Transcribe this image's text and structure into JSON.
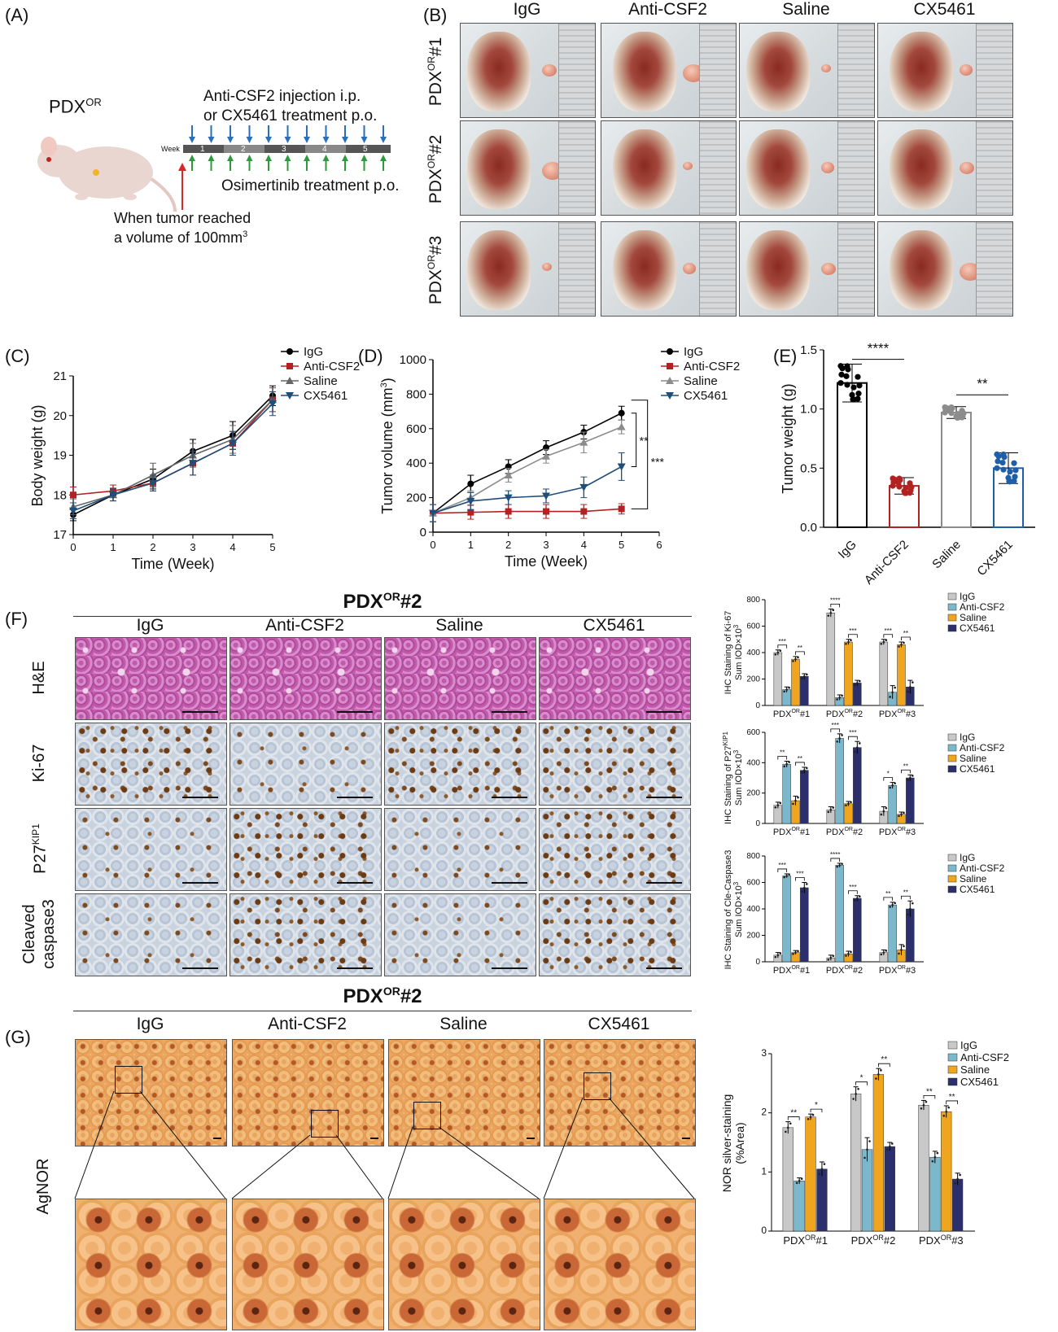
{
  "panels": {
    "A": {
      "label": "(A)",
      "model": "PDX",
      "model_sup": "OR",
      "treat_line1": "Anti-CSF2 injection i.p.",
      "treat_line2": "or CX5461 treatment p.o.",
      "week_word": "Week",
      "weeks": [
        "1",
        "2",
        "3",
        "4",
        "5"
      ],
      "osimertinib": "Osimertinib treatment p.o.",
      "start_line1": "When tumor reached",
      "start_line2": "a volume of 100mm",
      "start_sup": "3",
      "colors": {
        "blue_arrow": "#2a6fbe",
        "green_arrow": "#2e9a3e",
        "red_arrow": "#d62828"
      }
    },
    "B": {
      "label": "(B)",
      "columns": [
        "IgG",
        "Anti-CSF2",
        "Saline",
        "CX5461"
      ],
      "rows": [
        {
          "pre": "PDX",
          "sup": "OR",
          "post": "#1"
        },
        {
          "pre": "PDX",
          "sup": "OR",
          "post": "#2"
        },
        {
          "pre": "PDX",
          "sup": "OR",
          "post": "#3"
        }
      ]
    },
    "C": {
      "label": "(C)"
    },
    "D": {
      "label": "(D)"
    },
    "E": {
      "label": "(E)"
    },
    "F": {
      "label": "(F)",
      "title_pre": "PDX",
      "title_sup": "OR",
      "title_post": "#2",
      "columns": [
        "IgG",
        "Anti-CSF2",
        "Saline",
        "CX5461"
      ],
      "rows": [
        "H&E",
        "Ki-67",
        "P27",
        "Cleaved",
        "caspase3"
      ],
      "p27_sup": "KIP1"
    },
    "G": {
      "label": "(G)",
      "title_pre": "PDX",
      "title_sup": "OR",
      "title_post": "#2",
      "columns": [
        "IgG",
        "Anti-CSF2",
        "Saline",
        "CX5461"
      ],
      "row_label": "AgNOR"
    }
  },
  "chart_data": [
    {
      "id": "C",
      "type": "line",
      "xlabel": "Time (Week)",
      "ylabel": "Body weight (g)",
      "xlim": [
        0,
        5
      ],
      "ylim": [
        17,
        21
      ],
      "xticks": [
        0,
        1,
        2,
        3,
        4,
        5
      ],
      "yticks": [
        17,
        18,
        19,
        20,
        21
      ],
      "x": [
        0,
        1,
        2,
        3,
        4,
        5
      ],
      "series": [
        {
          "name": "IgG",
          "marker": "circle",
          "color": "#000000",
          "values": [
            17.5,
            18.0,
            18.4,
            19.1,
            19.5,
            20.5
          ],
          "err": [
            0.15,
            0.15,
            0.25,
            0.3,
            0.35,
            0.25
          ]
        },
        {
          "name": "Anti-CSF2",
          "marker": "square",
          "color": "#b22222",
          "values": [
            18.0,
            18.1,
            18.3,
            18.8,
            19.3,
            20.4
          ],
          "err": [
            0.2,
            0.15,
            0.2,
            0.3,
            0.3,
            0.3
          ]
        },
        {
          "name": "Saline",
          "marker": "triangle",
          "color": "#666666",
          "values": [
            17.7,
            18.0,
            18.5,
            19.0,
            19.4,
            20.4
          ],
          "err": [
            0.2,
            0.15,
            0.3,
            0.3,
            0.35,
            0.3
          ]
        },
        {
          "name": "CX5461",
          "marker": "triangle-down",
          "color": "#1f4e79",
          "values": [
            17.6,
            18.0,
            18.3,
            18.8,
            19.3,
            20.3
          ],
          "err": [
            0.2,
            0.15,
            0.2,
            0.3,
            0.3,
            0.3
          ]
        }
      ],
      "legend": "top-right"
    },
    {
      "id": "D",
      "type": "line",
      "xlabel": "Time (Week)",
      "ylabel": "Tumor volume (mm",
      "ylabel_sup": "3",
      "ylabel_post": ")",
      "xlim": [
        0,
        6
      ],
      "ylim": [
        0,
        1000
      ],
      "xticks": [
        0,
        1,
        2,
        3,
        4,
        5,
        6
      ],
      "yticks": [
        0,
        200,
        400,
        600,
        800,
        1000
      ],
      "x": [
        0,
        1,
        2,
        3,
        4,
        5
      ],
      "series": [
        {
          "name": "IgG",
          "marker": "circle",
          "color": "#000000",
          "values": [
            110,
            280,
            380,
            490,
            580,
            690
          ],
          "err": [
            50,
            50,
            40,
            40,
            40,
            40
          ]
        },
        {
          "name": "Anti-CSF2",
          "marker": "square",
          "color": "#b22222",
          "values": [
            110,
            115,
            120,
            120,
            120,
            135
          ],
          "err": [
            50,
            40,
            40,
            40,
            40,
            30
          ]
        },
        {
          "name": "Saline",
          "marker": "triangle",
          "color": "#8c8c8c",
          "values": [
            110,
            200,
            330,
            440,
            520,
            610
          ],
          "err": [
            50,
            40,
            40,
            40,
            60,
            40
          ]
        },
        {
          "name": "CX5461",
          "marker": "triangle-down",
          "color": "#1f4e79",
          "values": [
            110,
            180,
            200,
            210,
            260,
            380
          ],
          "err": [
            50,
            50,
            40,
            40,
            60,
            80
          ]
        }
      ],
      "sig": [
        {
          "label": "**"
        },
        {
          "label": "***"
        }
      ],
      "legend": "top-right"
    },
    {
      "id": "E",
      "type": "bar",
      "ylabel": "Tumor weight (g)",
      "categories": [
        "IgG",
        "Anti-CSF2",
        "Saline",
        "CX5461"
      ],
      "values": [
        1.22,
        0.35,
        0.97,
        0.5
      ],
      "err": [
        0.16,
        0.07,
        0.05,
        0.13
      ],
      "colors": [
        "#000000",
        "#b22222",
        "#8c8c8c",
        "#1f5fa8"
      ],
      "ylim": [
        0,
        1.5
      ],
      "yticks": [
        "0.0",
        "0.5",
        "1.0",
        "1.5"
      ],
      "sig": [
        {
          "label": "****"
        },
        {
          "label": "**"
        }
      ]
    },
    {
      "id": "F1",
      "type": "bar",
      "ylabel_line1": "IHC Staining of Ki-67",
      "ylabel_line2": "Sum IOD×10",
      "ylabel_sup": "3",
      "groups": [
        {
          "pre": "PDX",
          "sup": "OR",
          "post": "#1"
        },
        {
          "pre": "PDX",
          "sup": "OR",
          "post": "#2"
        },
        {
          "pre": "PDX",
          "sup": "OR",
          "post": "#3"
        }
      ],
      "series_names": [
        "IgG",
        "Anti-CSF2",
        "Saline",
        "CX5461"
      ],
      "colors": [
        "#c8c8c8",
        "#7bb8cc",
        "#f0a51e",
        "#2b2f6b"
      ],
      "values": [
        [
          400,
          700,
          480
        ],
        [
          120,
          60,
          100
        ],
        [
          350,
          480,
          460
        ],
        [
          220,
          170,
          140
        ]
      ],
      "err": [
        [
          20,
          30,
          20
        ],
        [
          20,
          20,
          50
        ],
        [
          20,
          20,
          20
        ],
        [
          20,
          20,
          50
        ]
      ],
      "ylim": [
        0,
        800
      ],
      "yticks": [
        0,
        200,
        400,
        600,
        800
      ],
      "sig": [
        "***",
        "**",
        "****",
        "***",
        "***",
        "**"
      ]
    },
    {
      "id": "F2",
      "type": "bar",
      "ylabel_line1": "IHC Staining of P27",
      "ylabel_sup1": "KIP1",
      "ylabel_line2": "Sum IOD×10",
      "ylabel_sup": "3",
      "groups": [
        {
          "pre": "PDX",
          "sup": "OR",
          "post": "#1"
        },
        {
          "pre": "PDX",
          "sup": "OR",
          "post": "#2"
        },
        {
          "pre": "PDX",
          "sup": "OR",
          "post": "#3"
        }
      ],
      "series_names": [
        "IgG",
        "Anti-CSF2",
        "Saline",
        "CX5461"
      ],
      "colors": [
        "#c8c8c8",
        "#7bb8cc",
        "#f0a51e",
        "#2b2f6b"
      ],
      "values": [
        [
          120,
          90,
          80
        ],
        [
          390,
          560,
          250
        ],
        [
          150,
          130,
          60
        ],
        [
          350,
          500,
          300
        ]
      ],
      "err": [
        [
          20,
          20,
          30
        ],
        [
          20,
          30,
          20
        ],
        [
          30,
          15,
          15
        ],
        [
          20,
          40,
          20
        ]
      ],
      "ylim": [
        0,
        600
      ],
      "yticks": [
        0,
        200,
        400,
        600
      ],
      "sig": [
        "**",
        "**",
        "***",
        "***",
        "*",
        "**"
      ]
    },
    {
      "id": "F3",
      "type": "bar",
      "ylabel_line1": "IHC Staining of Cle-Caspase3",
      "ylabel_line2": "Sum IOD×10",
      "ylabel_sup": "3",
      "groups": [
        {
          "pre": "PDX",
          "sup": "OR",
          "post": "#1"
        },
        {
          "pre": "PDX",
          "sup": "OR",
          "post": "#2"
        },
        {
          "pre": "PDX",
          "sup": "OR",
          "post": "#3"
        }
      ],
      "series_names": [
        "IgG",
        "Anti-CSF2",
        "Saline",
        "CX5461"
      ],
      "colors": [
        "#c8c8c8",
        "#7bb8cc",
        "#f0a51e",
        "#2b2f6b"
      ],
      "values": [
        [
          50,
          30,
          70
        ],
        [
          650,
          730,
          430
        ],
        [
          70,
          60,
          90
        ],
        [
          560,
          480,
          400
        ]
      ],
      "err": [
        [
          20,
          20,
          20
        ],
        [
          15,
          15,
          20
        ],
        [
          15,
          20,
          40
        ],
        [
          40,
          20,
          60
        ]
      ],
      "ylim": [
        0,
        800
      ],
      "yticks": [
        0,
        200,
        400,
        600,
        800
      ],
      "sig": [
        "***",
        "***",
        "****",
        "***",
        "**",
        "**"
      ]
    },
    {
      "id": "G",
      "type": "bar",
      "ylabel_line1": "NOR silver-staining",
      "ylabel_line2": "(%Area)",
      "groups": [
        {
          "pre": "PDX",
          "sup": "OR",
          "post": "#1"
        },
        {
          "pre": "PDX",
          "sup": "OR",
          "post": "#2"
        },
        {
          "pre": "PDX",
          "sup": "OR",
          "post": "#3"
        }
      ],
      "series_names": [
        "IgG",
        "Anti-CSF2",
        "Saline",
        "CX5461"
      ],
      "colors": [
        "#c8c8c8",
        "#7bb8cc",
        "#f0a51e",
        "#2b2f6b"
      ],
      "values": [
        [
          1.75,
          2.32,
          2.13
        ],
        [
          0.85,
          1.38,
          1.25
        ],
        [
          1.93,
          2.65,
          2.02
        ],
        [
          1.05,
          1.43,
          0.88
        ]
      ],
      "err": [
        [
          0.1,
          0.12,
          0.08
        ],
        [
          0.05,
          0.2,
          0.1
        ],
        [
          0.05,
          0.1,
          0.1
        ],
        [
          0.12,
          0.07,
          0.1
        ]
      ],
      "ylim": [
        0,
        3
      ],
      "yticks": [
        0,
        1,
        2,
        3
      ],
      "sig": [
        "**",
        "*",
        "*",
        "**",
        "**",
        "**"
      ]
    }
  ]
}
